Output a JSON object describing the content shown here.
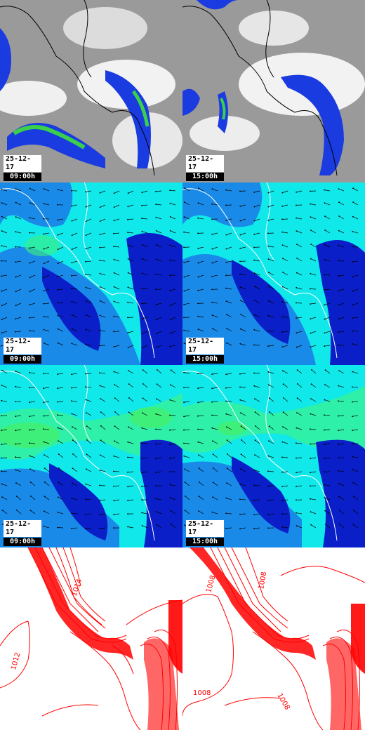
{
  "panels": [
    {
      "id": "cloud-0900",
      "type": "cloud",
      "date": "25-12-17",
      "time": "09:00h"
    },
    {
      "id": "cloud-1500",
      "type": "cloud",
      "date": "25-12-17",
      "time": "15:00h"
    },
    {
      "id": "wind-low-0900",
      "type": "wind",
      "date": "25-12-17",
      "time": "09:00h"
    },
    {
      "id": "wind-low-1500",
      "type": "wind",
      "date": "25-12-17",
      "time": "15:00h"
    },
    {
      "id": "wind-high-0900",
      "type": "wind",
      "date": "25-12-17",
      "time": "09:00h"
    },
    {
      "id": "wind-high-1500",
      "type": "wind",
      "date": "25-12-17",
      "time": "15:00h"
    },
    {
      "id": "pressure-0900",
      "type": "pressure",
      "labels": [
        "1014",
        "1012"
      ]
    },
    {
      "id": "pressure-1500",
      "type": "pressure",
      "labels": [
        "1008",
        "1008",
        "1008",
        "1008"
      ]
    }
  ],
  "colors": {
    "cloud_grey": "#9a9a9a",
    "cloud_white": "#f4f4f4",
    "precip_blue": "#1a3be0",
    "precip_green": "#3bd04a",
    "wind_cyan": "#10e8ea",
    "wind_mid": "#1a8ae8",
    "wind_dark": "#0a1fc8",
    "wind_green": "#3ef07a",
    "isobar_red": "#ff0000",
    "coast": "#000000",
    "coast_on_wind": "#ffffff"
  }
}
